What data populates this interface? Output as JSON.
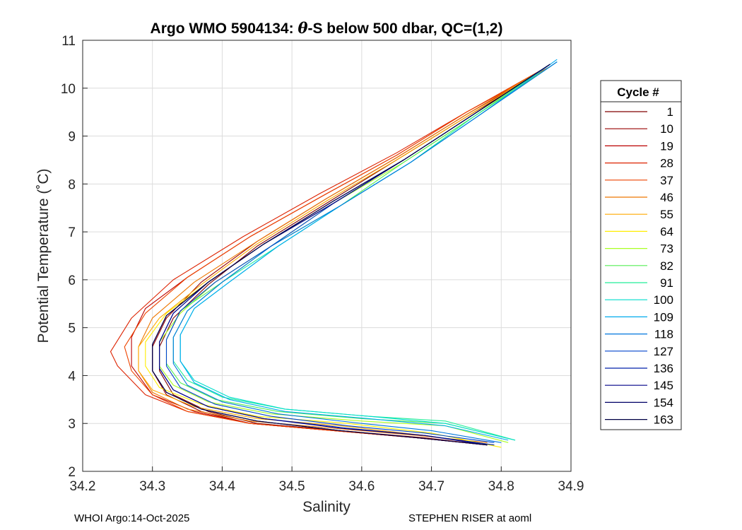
{
  "chart_data": {
    "type": "line",
    "title_prefix": "Argo WMO 5904134: ",
    "title_theta": "θ",
    "title_suffix": "-S below 500 dbar,  QC=(1,2)",
    "xlabel": "Salinity",
    "ylabel": "Potential Temperature (˚C)",
    "xlim": [
      34.2,
      34.9
    ],
    "ylim": [
      2,
      11
    ],
    "xticks": [
      "34.2",
      "34.3",
      "34.4",
      "34.5",
      "34.6",
      "34.7",
      "34.8",
      "34.9"
    ],
    "yticks": [
      "2",
      "3",
      "4",
      "5",
      "6",
      "7",
      "8",
      "9",
      "10",
      "11"
    ],
    "grid": true,
    "legend_title": "Cycle #",
    "legend_position": "right",
    "legend": [
      {
        "label": "1",
        "color": "#800000"
      },
      {
        "label": "10",
        "color": "#990000"
      },
      {
        "label": "19",
        "color": "#bb0000"
      },
      {
        "label": "28",
        "color": "#dd2200"
      },
      {
        "label": "37",
        "color": "#ee4400"
      },
      {
        "label": "46",
        "color": "#ee7700"
      },
      {
        "label": "55",
        "color": "#ffaa00"
      },
      {
        "label": "64",
        "color": "#ffee00"
      },
      {
        "label": "73",
        "color": "#aaff22"
      },
      {
        "label": "82",
        "color": "#55ee55"
      },
      {
        "label": "91",
        "color": "#22ee99"
      },
      {
        "label": "100",
        "color": "#00ddcc"
      },
      {
        "label": "109",
        "color": "#00aaee"
      },
      {
        "label": "118",
        "color": "#0077dd"
      },
      {
        "label": "127",
        "color": "#0044cc"
      },
      {
        "label": "136",
        "color": "#0022aa"
      },
      {
        "label": "145",
        "color": "#000088"
      },
      {
        "label": "154",
        "color": "#000066"
      },
      {
        "label": "163",
        "color": "#000044"
      }
    ],
    "series": [
      {
        "name": "1",
        "x": [
          34.78,
          34.69,
          34.57,
          34.45,
          34.38,
          34.33,
          34.31,
          34.31,
          34.33,
          34.38,
          34.45,
          34.55,
          34.65,
          34.75,
          34.87
        ],
        "y": [
          2.55,
          2.7,
          2.85,
          3.0,
          3.25,
          3.6,
          4.1,
          4.6,
          5.2,
          5.9,
          6.7,
          7.6,
          8.5,
          9.4,
          10.45
        ]
      },
      {
        "name": "10",
        "x": [
          34.78,
          34.68,
          34.56,
          34.44,
          34.37,
          34.32,
          34.3,
          34.3,
          34.32,
          34.37,
          34.45,
          34.55,
          34.65,
          34.75,
          34.87
        ],
        "y": [
          2.55,
          2.7,
          2.85,
          3.0,
          3.25,
          3.6,
          4.1,
          4.6,
          5.2,
          5.95,
          6.8,
          7.7,
          8.55,
          9.45,
          10.45
        ]
      },
      {
        "name": "19",
        "x": [
          34.78,
          34.68,
          34.56,
          34.44,
          34.36,
          34.3,
          34.27,
          34.27,
          34.29,
          34.35,
          34.44,
          34.55,
          34.65,
          34.75,
          34.87
        ],
        "y": [
          2.55,
          2.7,
          2.85,
          3.0,
          3.25,
          3.6,
          4.2,
          4.8,
          5.4,
          6.05,
          6.9,
          7.8,
          8.6,
          9.5,
          10.45
        ]
      },
      {
        "name": "28",
        "x": [
          34.78,
          34.68,
          34.56,
          34.44,
          34.35,
          34.29,
          34.25,
          34.24,
          34.27,
          34.33,
          34.43,
          34.54,
          34.65,
          34.75,
          34.87
        ],
        "y": [
          2.55,
          2.7,
          2.85,
          3.0,
          3.25,
          3.6,
          4.2,
          4.5,
          5.2,
          6.0,
          6.9,
          7.8,
          8.65,
          9.5,
          10.45
        ]
      },
      {
        "name": "37",
        "x": [
          34.78,
          34.68,
          34.56,
          34.44,
          34.35,
          34.3,
          34.27,
          34.26,
          34.29,
          34.35,
          34.44,
          34.55,
          34.65,
          34.75,
          34.86
        ],
        "y": [
          2.55,
          2.7,
          2.85,
          3.0,
          3.25,
          3.6,
          4.1,
          4.6,
          5.3,
          6.05,
          6.9,
          7.8,
          8.6,
          9.5,
          10.4
        ]
      },
      {
        "name": "46",
        "x": [
          34.78,
          34.68,
          34.56,
          34.44,
          34.35,
          34.3,
          34.28,
          34.28,
          34.3,
          34.36,
          34.45,
          34.55,
          34.65,
          34.75,
          34.86
        ],
        "y": [
          2.6,
          2.75,
          2.9,
          3.05,
          3.3,
          3.65,
          4.1,
          4.6,
          5.2,
          5.95,
          6.8,
          7.7,
          8.55,
          9.45,
          10.4
        ]
      },
      {
        "name": "55",
        "x": [
          34.79,
          34.69,
          34.57,
          34.45,
          34.36,
          34.3,
          34.28,
          34.28,
          34.31,
          34.37,
          34.45,
          34.55,
          34.65,
          34.75,
          34.86
        ],
        "y": [
          2.55,
          2.75,
          2.95,
          3.1,
          3.35,
          3.7,
          4.1,
          4.6,
          5.2,
          5.9,
          6.75,
          7.65,
          8.5,
          9.4,
          10.4
        ]
      },
      {
        "name": "64",
        "x": [
          34.8,
          34.7,
          34.58,
          34.45,
          34.37,
          34.31,
          34.29,
          34.29,
          34.32,
          34.38,
          34.46,
          34.56,
          34.66,
          34.76,
          34.87
        ],
        "y": [
          2.5,
          2.8,
          3.0,
          3.15,
          3.4,
          3.75,
          4.2,
          4.7,
          5.3,
          5.95,
          6.75,
          7.6,
          8.5,
          9.45,
          10.45
        ]
      },
      {
        "name": "73",
        "x": [
          34.81,
          34.72,
          34.6,
          34.47,
          34.38,
          34.33,
          34.31,
          34.31,
          34.34,
          34.39,
          34.47,
          34.56,
          34.66,
          34.76,
          34.87
        ],
        "y": [
          2.6,
          2.95,
          3.05,
          3.2,
          3.45,
          3.8,
          4.2,
          4.7,
          5.3,
          5.95,
          6.7,
          7.6,
          8.45,
          9.4,
          10.45
        ]
      },
      {
        "name": "82",
        "x": [
          34.82,
          34.72,
          34.6,
          34.48,
          34.39,
          34.34,
          34.32,
          34.32,
          34.34,
          34.4,
          34.47,
          34.57,
          34.66,
          34.76,
          34.87
        ],
        "y": [
          2.65,
          3.0,
          3.1,
          3.25,
          3.5,
          3.85,
          4.25,
          4.75,
          5.35,
          5.95,
          6.7,
          7.55,
          8.45,
          9.4,
          10.45
        ]
      },
      {
        "name": "91",
        "x": [
          34.82,
          34.72,
          34.61,
          34.49,
          34.4,
          34.35,
          34.33,
          34.33,
          34.35,
          34.4,
          34.48,
          34.57,
          34.67,
          34.76,
          34.87
        ],
        "y": [
          2.65,
          3.05,
          3.15,
          3.3,
          3.55,
          3.9,
          4.3,
          4.8,
          5.35,
          5.95,
          6.7,
          7.55,
          8.45,
          9.4,
          10.5
        ]
      },
      {
        "name": "100",
        "x": [
          34.82,
          34.72,
          34.61,
          34.49,
          34.41,
          34.36,
          34.34,
          34.34,
          34.36,
          34.41,
          34.48,
          34.57,
          34.67,
          34.77,
          34.88
        ],
        "y": [
          2.65,
          3.0,
          3.15,
          3.3,
          3.55,
          3.9,
          4.3,
          4.85,
          5.4,
          5.95,
          6.7,
          7.55,
          8.45,
          9.45,
          10.55
        ]
      },
      {
        "name": "109",
        "x": [
          34.81,
          34.72,
          34.61,
          34.49,
          34.41,
          34.36,
          34.34,
          34.34,
          34.36,
          34.41,
          34.48,
          34.57,
          34.67,
          34.77,
          34.88
        ],
        "y": [
          2.65,
          2.95,
          3.1,
          3.25,
          3.5,
          3.85,
          4.3,
          4.85,
          5.4,
          5.95,
          6.7,
          7.55,
          8.45,
          9.45,
          10.6
        ]
      },
      {
        "name": "118",
        "x": [
          34.8,
          34.7,
          34.6,
          34.48,
          34.4,
          34.35,
          34.33,
          34.33,
          34.35,
          34.4,
          34.47,
          34.57,
          34.67,
          34.77,
          34.88
        ],
        "y": [
          2.6,
          2.85,
          3.0,
          3.2,
          3.45,
          3.8,
          4.25,
          4.8,
          5.35,
          5.95,
          6.7,
          7.55,
          8.45,
          9.45,
          10.55
        ]
      },
      {
        "name": "127",
        "x": [
          34.79,
          34.69,
          34.58,
          34.47,
          34.39,
          34.34,
          34.32,
          34.32,
          34.34,
          34.39,
          34.47,
          34.56,
          34.66,
          34.76,
          34.87
        ],
        "y": [
          2.6,
          2.8,
          2.95,
          3.15,
          3.4,
          3.75,
          4.2,
          4.75,
          5.35,
          5.95,
          6.7,
          7.6,
          8.5,
          9.45,
          10.5
        ]
      },
      {
        "name": "136",
        "x": [
          34.79,
          34.69,
          34.58,
          34.46,
          34.38,
          34.33,
          34.31,
          34.31,
          34.33,
          34.38,
          34.46,
          34.56,
          34.66,
          34.76,
          34.87
        ],
        "y": [
          2.55,
          2.75,
          2.9,
          3.1,
          3.35,
          3.7,
          4.15,
          4.7,
          5.3,
          5.95,
          6.75,
          7.6,
          8.5,
          9.45,
          10.5
        ]
      },
      {
        "name": "145",
        "x": [
          34.78,
          34.69,
          34.57,
          34.46,
          34.38,
          34.33,
          34.31,
          34.31,
          34.33,
          34.38,
          34.46,
          34.56,
          34.66,
          34.76,
          34.87
        ],
        "y": [
          2.55,
          2.75,
          2.9,
          3.1,
          3.35,
          3.7,
          4.15,
          4.7,
          5.3,
          5.95,
          6.75,
          7.6,
          8.5,
          9.45,
          10.5
        ]
      },
      {
        "name": "154",
        "x": [
          34.78,
          34.68,
          34.57,
          34.45,
          34.37,
          34.32,
          34.3,
          34.3,
          34.32,
          34.38,
          34.46,
          34.56,
          34.66,
          34.76,
          34.87
        ],
        "y": [
          2.55,
          2.7,
          2.85,
          3.05,
          3.3,
          3.65,
          4.1,
          4.65,
          5.25,
          5.95,
          6.75,
          7.65,
          8.5,
          9.45,
          10.5
        ]
      },
      {
        "name": "163",
        "x": [
          34.78,
          34.68,
          34.57,
          34.45,
          34.37,
          34.32,
          34.3,
          34.3,
          34.32,
          34.38,
          34.46,
          34.56,
          34.66,
          34.76,
          34.87
        ],
        "y": [
          2.55,
          2.7,
          2.85,
          3.05,
          3.3,
          3.65,
          4.1,
          4.65,
          5.25,
          5.95,
          6.75,
          7.65,
          8.5,
          9.45,
          10.5
        ]
      }
    ]
  },
  "footer": {
    "left": "WHOI Argo:14-Oct-2025",
    "right": "STEPHEN RISER at aoml"
  }
}
